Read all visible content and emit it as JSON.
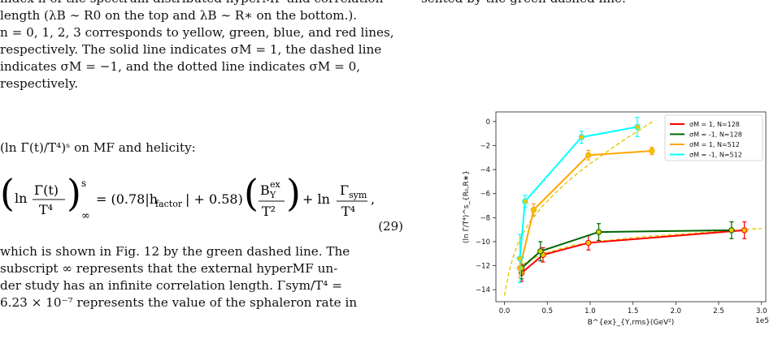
{
  "left": {
    "para1_lines": [
      "index n of the spectrum distributed hyperMF and correlation",
      "length (λB ∼ R0 on the top and λB ∼ R∗ on the bottom.).",
      "n = 0, 1, 2, 3 corresponds to yellow, green, blue, and red lines,",
      "respectively. The solid line indicates σM = 1, the dashed line",
      "indicates σM = −1, and the dotted line indicates σM = 0,",
      "respectively."
    ],
    "intro_line": "(ln Γ̄(t)/T⁴)ˢ on MF and helicity:",
    "equation": {
      "lhs_top": "ln",
      "lhs_frac_num": "Γ̄(t)",
      "lhs_frac_den": "T⁴",
      "lhs_sup": "s",
      "lhs_sub": "∞",
      "coef": "= (0.78|h",
      "coef_sub": "factor",
      "coef_tail": "| + 0.58)",
      "bfrac_num": "B",
      "bfrac_num_sup": "ex",
      "bfrac_num_sub": "Y",
      "bfrac_den": "T²",
      "plus_ln": "+ ln",
      "gfrac_num": "Γ",
      "gfrac_num_sub": "sym",
      "gfrac_den": "T⁴",
      "tail": ",",
      "number": "(29)"
    },
    "para2_lines": [
      "which is shown in Fig. 12 by the green dashed line. The",
      "subscript ∞ represents that the external hyperMF un-",
      "der study has an infinite correlation length. Γsym/T⁴ =",
      "6.23 × 10⁻⁷ represents the value of the sphaleron rate in"
    ],
    "fig_ref": "12"
  },
  "right": {
    "top_fragment": "sented by the green dashed line."
  },
  "chart_data": {
    "type": "line",
    "xlabel": "B^{ex}_{Y,rms}(GeV²)",
    "ylabel": "(ln Γ̄/T⁴)^s_{R₀,R∗}",
    "x_offset_label": "1e5",
    "xlim": [
      -0.1,
      3.05
    ],
    "ylim": [
      -15,
      0.8
    ],
    "xticks": [
      0.0,
      0.5,
      1.0,
      1.5,
      2.0,
      2.5,
      3.0
    ],
    "xtick_labels": [
      "0.0",
      "0.5",
      "1.0",
      "1.5",
      "2.0",
      "2.5",
      "3.0"
    ],
    "yticks": [
      0,
      -2,
      -4,
      -6,
      -8,
      -10,
      -12,
      -14
    ],
    "ytick_labels": [
      "0",
      "−2",
      "−4",
      "−6",
      "−8",
      "−10",
      "−12",
      "−14"
    ],
    "legend_position": "top-right",
    "series": [
      {
        "name": "σM = 1, N=128",
        "color": "#ff0000",
        "x": [
          0.2,
          0.45,
          0.98,
          2.8
        ],
        "y": [
          -12.6,
          -11.1,
          -10.1,
          -9.05
        ],
        "err": [
          0.7,
          0.6,
          0.6,
          0.7
        ]
      },
      {
        "name": "σM = -1, N=128",
        "color": "#006400",
        "x": [
          0.2,
          0.42,
          1.1,
          2.65
        ],
        "y": [
          -12.2,
          -10.8,
          -9.2,
          -9.05
        ],
        "err": [
          0.9,
          0.8,
          0.7,
          0.7
        ]
      },
      {
        "name": "σM = 1, N=512",
        "color": "#ffa500",
        "x": [
          0.18,
          0.34,
          0.98,
          1.72
        ],
        "y": [
          -12.2,
          -7.35,
          -2.8,
          -2.45
        ],
        "err": [
          0.8,
          0.5,
          0.4,
          0.3
        ]
      },
      {
        "name": "σM = -1, N=512",
        "color": "#00ffff",
        "x": [
          0.18,
          0.24,
          0.9,
          1.55
        ],
        "y": [
          -11.4,
          -6.65,
          -1.3,
          -0.45
        ],
        "err": [
          2.0,
          0.5,
          0.5,
          0.8
        ]
      }
    ],
    "fits": [
      {
        "color": "#e6c800",
        "x": [
          0.0,
          0.05,
          0.1,
          0.15,
          0.2,
          0.3,
          0.45,
          0.6,
          0.8,
          1.0,
          1.2,
          1.4,
          1.6,
          1.75
        ],
        "y": [
          -14.5,
          -12.6,
          -11.3,
          -10.3,
          -9.5,
          -8.3,
          -7.0,
          -5.9,
          -4.6,
          -3.5,
          -2.5,
          -1.5,
          -0.6,
          0.1
        ]
      },
      {
        "color": "#e6c800",
        "x": [
          0.15,
          0.3,
          0.5,
          0.8,
          1.2,
          1.6,
          2.0,
          2.4,
          2.8,
          3.0
        ],
        "y": [
          -12.2,
          -11.5,
          -10.9,
          -10.3,
          -9.9,
          -9.6,
          -9.4,
          -9.2,
          -9.0,
          -8.9
        ]
      }
    ]
  }
}
